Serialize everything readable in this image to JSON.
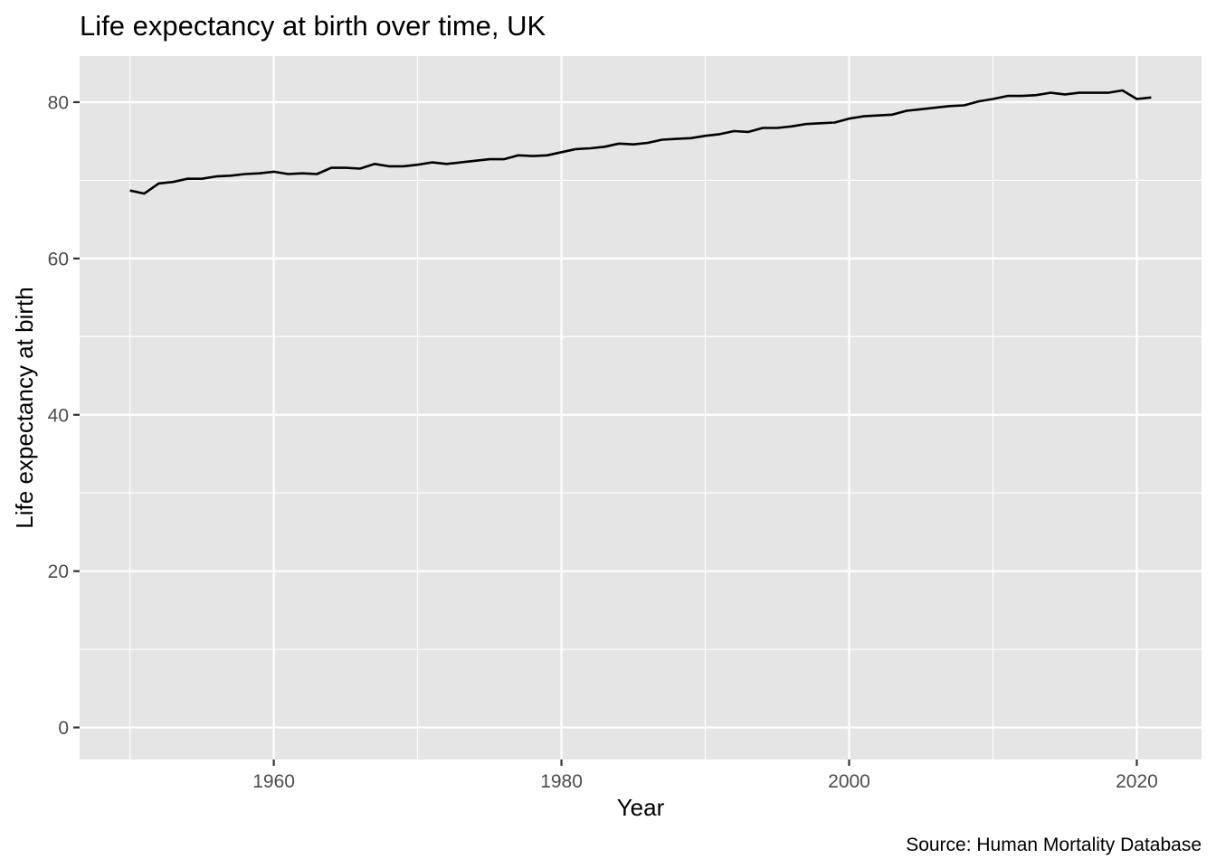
{
  "chart_data": {
    "type": "line",
    "title": "Life expectancy at birth over time, UK",
    "xlabel": "Year",
    "ylabel": "Life expectancy at birth",
    "caption": "Source: Human Mortality Database",
    "xlim": [
      1946.5,
      2024.5
    ],
    "ylim": [
      -4.1,
      85.9
    ],
    "x_ticks": [
      1960,
      1980,
      2000,
      2020
    ],
    "x_minor_ticks": [
      1950,
      1970,
      1990,
      2010
    ],
    "y_ticks": [
      0,
      20,
      40,
      60,
      80
    ],
    "y_minor_ticks": [
      10,
      30,
      50,
      70
    ],
    "grid": true,
    "legend": "none",
    "colors": {
      "panel": "#e5e5e5",
      "grid": "#ffffff",
      "line": "#000000"
    },
    "series": [
      {
        "x": [
          1950,
          1951,
          1952,
          1953,
          1954,
          1955,
          1956,
          1957,
          1958,
          1959,
          1960,
          1961,
          1962,
          1963,
          1964,
          1965,
          1966,
          1967,
          1968,
          1969,
          1970,
          1971,
          1972,
          1973,
          1974,
          1975,
          1976,
          1977,
          1978,
          1979,
          1980,
          1981,
          1982,
          1983,
          1984,
          1985,
          1986,
          1987,
          1988,
          1989,
          1990,
          1991,
          1992,
          1993,
          1994,
          1995,
          1996,
          1997,
          1998,
          1999,
          2000,
          2001,
          2002,
          2003,
          2004,
          2005,
          2006,
          2007,
          2008,
          2009,
          2010,
          2011,
          2012,
          2013,
          2014,
          2015,
          2016,
          2017,
          2018,
          2019,
          2020,
          2021
        ],
        "values": [
          68.7,
          68.3,
          69.6,
          69.8,
          70.2,
          70.2,
          70.5,
          70.6,
          70.8,
          70.9,
          71.1,
          70.8,
          70.9,
          70.8,
          71.6,
          71.6,
          71.5,
          72.1,
          71.8,
          71.8,
          72.0,
          72.3,
          72.1,
          72.3,
          72.5,
          72.7,
          72.7,
          73.2,
          73.1,
          73.2,
          73.6,
          74.0,
          74.1,
          74.3,
          74.7,
          74.6,
          74.8,
          75.2,
          75.3,
          75.4,
          75.7,
          75.9,
          76.3,
          76.2,
          76.7,
          76.7,
          76.9,
          77.2,
          77.3,
          77.4,
          77.9,
          78.2,
          78.3,
          78.4,
          78.9,
          79.1,
          79.3,
          79.5,
          79.6,
          80.1,
          80.4,
          80.8,
          80.8,
          80.9,
          81.2,
          81.0,
          81.2,
          81.2,
          81.2,
          81.5,
          80.4,
          80.6
        ]
      }
    ]
  }
}
